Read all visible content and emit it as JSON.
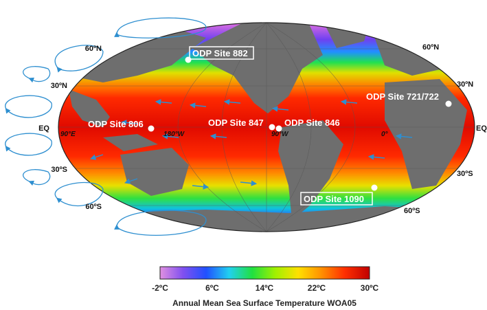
{
  "map": {
    "title": "Annual Mean Sea Surface Temperature WOA05",
    "lat_labels": {
      "n60": "60ºN",
      "n30": "30ºN",
      "eq": "EQ",
      "s30": "30ºS",
      "s60": "60ºS"
    },
    "lon_labels": {
      "e90": "90°E",
      "w180": "180°W",
      "w90": "90°W",
      "zero": "0°"
    },
    "sites": [
      {
        "id": "882",
        "label": "ODP Site 882",
        "boxed": true
      },
      {
        "id": "806",
        "label": "ODP Site 806",
        "boxed": false
      },
      {
        "id": "847",
        "label": "ODP Site 847",
        "boxed": false
      },
      {
        "id": "846",
        "label": "ODP Site 846",
        "boxed": false
      },
      {
        "id": "721",
        "label": "ODP Site 721/722",
        "boxed": false
      },
      {
        "id": "1090",
        "label": "ODP Site 1090",
        "boxed": true
      }
    ]
  },
  "colorbar": {
    "ticks": [
      "-2ºC",
      "6ºC",
      "14ºC",
      "22ºC",
      "30ºC"
    ],
    "stops": [
      "#e090e0",
      "#8050f0",
      "#2050ff",
      "#20d0f0",
      "#20e040",
      "#a0f000",
      "#ffe000",
      "#ff9000",
      "#ff3000",
      "#c00000"
    ]
  },
  "colors": {
    "land": "#6e6e6e",
    "arrows": "#2e8fd0",
    "sites": "#ffffff"
  }
}
